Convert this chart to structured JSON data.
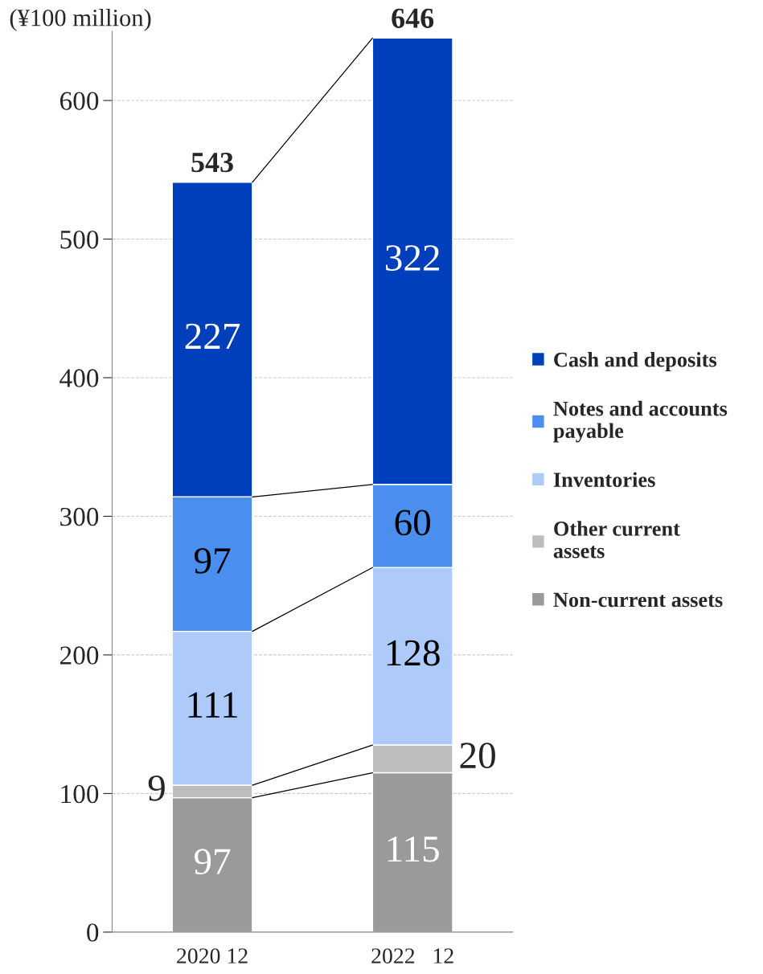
{
  "chart_data": {
    "type": "bar",
    "stacked": true,
    "ylabel": "(¥100 million)",
    "categories": [
      "2020 12",
      "2022   12"
    ],
    "series": [
      {
        "name": "Non-current assets",
        "color": "#9a9a9a",
        "values": [
          97,
          115
        ]
      },
      {
        "name": "Other current assets",
        "color": "#bdbdbd",
        "values": [
          9,
          20
        ]
      },
      {
        "name": "Inventories",
        "color": "#adcaf8",
        "values": [
          111,
          128
        ]
      },
      {
        "name": "Notes and accounts payable",
        "color": "#4a8ff0",
        "values": [
          97,
          60
        ]
      },
      {
        "name": "Cash and deposits",
        "color": "#003fbb",
        "values": [
          227,
          322
        ]
      }
    ],
    "totals": [
      "543",
      "646"
    ],
    "data_labels": true,
    "ylim": [
      0,
      650
    ],
    "yticks": [
      0,
      100,
      200,
      300,
      400,
      500,
      600
    ],
    "grid": "y",
    "legend": "right"
  }
}
